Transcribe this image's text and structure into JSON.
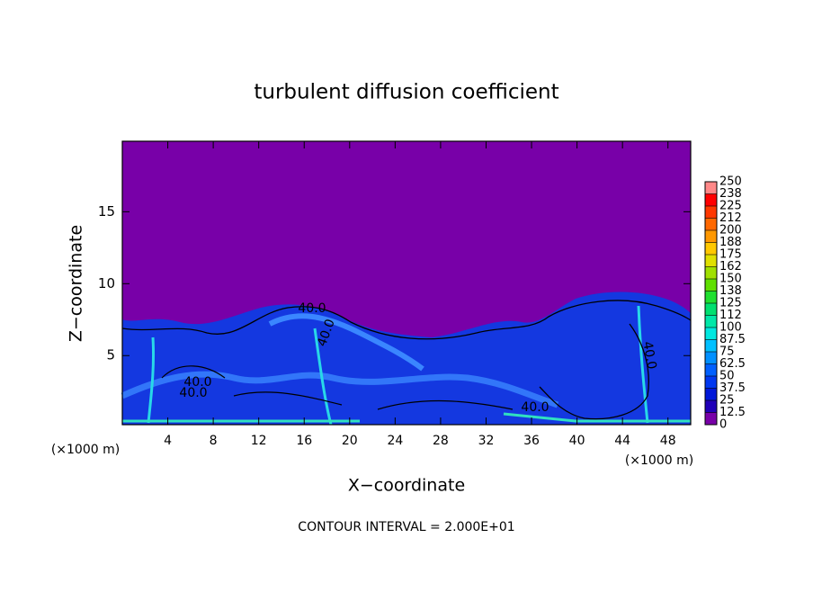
{
  "chart_data": {
    "type": "contour",
    "title": "turbulent diffusion coefficient",
    "xlabel": "X−coordinate",
    "ylabel": "Z−coordinate",
    "unit_label": "(×1000 m)",
    "footnote": "CONTOUR INTERVAL = 2.000E+01",
    "contour_label": "40.0",
    "xlim": [
      0,
      50
    ],
    "ylim": [
      0.2,
      19.9
    ],
    "xticks": [
      4,
      8,
      12,
      16,
      20,
      24,
      28,
      32,
      36,
      40,
      44,
      48
    ],
    "yticks": [
      5,
      10,
      15
    ],
    "colorbar": {
      "levels": [
        0,
        12.5,
        25,
        37.5,
        50,
        62.5,
        75,
        87.5,
        100,
        {
          "value": 112.5,
          "label": "112"
        },
        125,
        {
          "value": 137.5,
          "label": "138"
        },
        150,
        {
          "value": 162.5,
          "label": "162"
        },
        175,
        {
          "value": 187.5,
          "label": "188"
        },
        200,
        {
          "value": 212.5,
          "label": "212"
        },
        225,
        {
          "value": 237.5,
          "label": "238"
        },
        250
      ],
      "colors": [
        "#7800a8",
        "#2000b8",
        "#0018d8",
        "#0038f0",
        "#0060ff",
        "#0090ff",
        "#00c0ff",
        "#00e8e0",
        "#00e8a8",
        "#00e070",
        "#20e030",
        "#60e000",
        "#a0e000",
        "#e0e000",
        "#ffc800",
        "#ff9800",
        "#ff6800",
        "#ff3800",
        "#ff0000",
        "#ff8888"
      ]
    }
  }
}
